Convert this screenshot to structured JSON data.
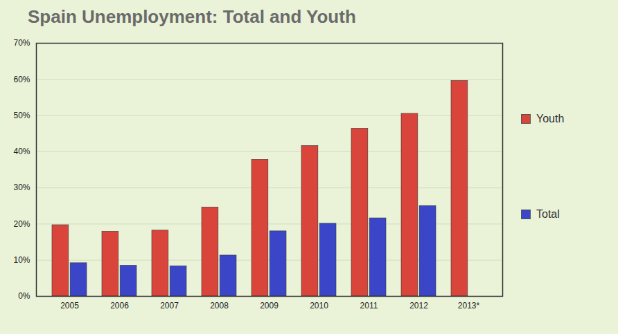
{
  "chart_data": {
    "type": "bar",
    "title": "Spain Unemployment: Total and Youth",
    "categories": [
      "2005",
      "2006",
      "2007",
      "2008",
      "2009",
      "2010",
      "2011",
      "2012",
      "2013*"
    ],
    "series": [
      {
        "name": "Youth",
        "color": "#d9453a",
        "values": [
          19.7,
          17.9,
          18.2,
          24.6,
          37.8,
          41.6,
          46.4,
          50.5,
          59.6
        ]
      },
      {
        "name": "Total",
        "color": "#3b45c8",
        "values": [
          9.2,
          8.5,
          8.3,
          11.3,
          18.0,
          20.1,
          21.6,
          25.0,
          null
        ]
      }
    ],
    "ylim": [
      0,
      70
    ],
    "yticks": [
      {
        "value": 0,
        "label": "0%"
      },
      {
        "value": 10,
        "label": "10%"
      },
      {
        "value": 20,
        "label": "20%"
      },
      {
        "value": 30,
        "label": "30%"
      },
      {
        "value": 40,
        "label": "40%"
      },
      {
        "value": 50,
        "label": "50%"
      },
      {
        "value": 60,
        "label": "60%"
      },
      {
        "value": 70,
        "label": "70%"
      }
    ],
    "grid": true,
    "legend": "right"
  }
}
